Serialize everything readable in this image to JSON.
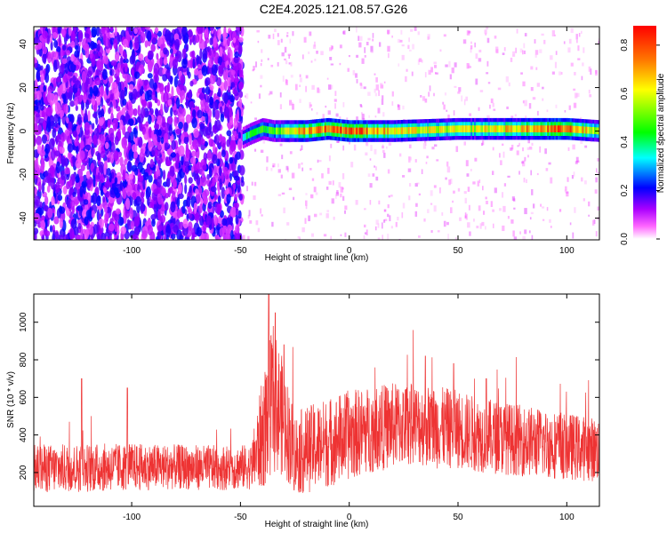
{
  "title": "C2E4.2025.121.08.57.G26",
  "chart_data": [
    {
      "type": "heatmap",
      "xlabel": "Height of straight line (km)",
      "ylabel": "Frequency (Hz)",
      "xlim": [
        -145,
        115
      ],
      "ylim": [
        -50,
        48
      ],
      "xticks": [
        -100,
        -50,
        0,
        50,
        100
      ],
      "yticks": [
        -40,
        -20,
        0,
        20,
        40
      ],
      "colorbar": {
        "label": "Normalized spectral amplitude",
        "range": [
          0.0,
          0.88
        ],
        "ticks": [
          0.0,
          0.2,
          0.4,
          0.6,
          0.8
        ],
        "colors": [
          "#ffffff",
          "#ff00ff",
          "#7a00ff",
          "#0000ff",
          "#00ffff",
          "#00ff00",
          "#ffff00",
          "#ff0000"
        ]
      },
      "regions": [
        {
          "x": [
            -145,
            -49
          ],
          "description_level": 0.1
        },
        {
          "x": [
            -49,
            115
          ],
          "description_level": 0.02
        }
      ],
      "ridge": {
        "x": [
          -49,
          -45,
          -40,
          -35,
          -30,
          -20,
          -10,
          0,
          20,
          50,
          80,
          100,
          115
        ],
        "y": [
          -3,
          -1,
          1,
          0,
          0,
          0,
          1,
          0,
          0,
          1,
          1,
          1,
          0
        ],
        "amplitude": [
          0.35,
          0.5,
          0.45,
          0.5,
          0.6,
          0.75,
          0.8,
          0.85,
          0.65,
          0.6,
          0.7,
          0.8,
          0.55
        ]
      }
    },
    {
      "type": "line",
      "xlabel": "Height of straight line (km)",
      "ylabel": "SNR (10 * v/v)",
      "xlim": [
        -145,
        115
      ],
      "ylim": [
        20,
        1150
      ],
      "xticks": [
        -100,
        -50,
        0,
        50,
        100
      ],
      "yticks": [
        200,
        400,
        600,
        800,
        1000
      ],
      "series": [
        {
          "color": "#ee3333",
          "envelope_x": [
            -145,
            -120,
            -100,
            -80,
            -60,
            -45,
            -40,
            -35,
            -30,
            -25,
            -20,
            -10,
            0,
            10,
            20,
            30,
            40,
            50,
            60,
            80,
            100,
            115
          ],
          "envelope_mid": [
            220,
            225,
            230,
            230,
            225,
            230,
            400,
            600,
            480,
            300,
            320,
            360,
            400,
            430,
            450,
            460,
            440,
            430,
            400,
            370,
            340,
            320
          ],
          "envelope_spread": [
            130,
            130,
            125,
            120,
            120,
            120,
            300,
            400,
            300,
            220,
            230,
            240,
            240,
            230,
            230,
            220,
            220,
            210,
            200,
            190,
            180,
            170
          ],
          "peaks": [
            [
              -37,
              1150
            ],
            [
              -34,
              1050
            ],
            [
              -30,
              880
            ],
            [
              -123,
              700
            ],
            [
              -102,
              650
            ],
            [
              35,
              820
            ],
            [
              48,
              780
            ],
            [
              63,
              700
            ]
          ]
        }
      ]
    }
  ]
}
